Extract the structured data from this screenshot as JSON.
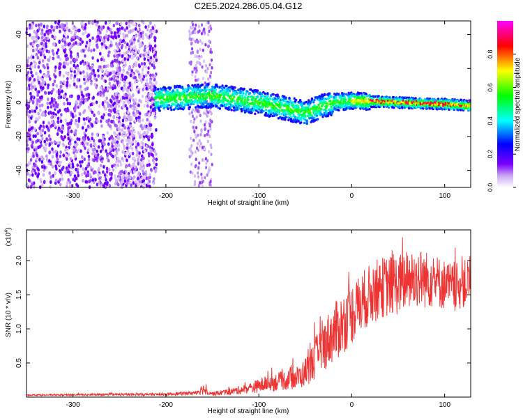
{
  "title": "C2E5.2024.286.05.04.G12",
  "chart_data": [
    {
      "type": "heatmap",
      "xlabel": "Height of straight line (km)",
      "ylabel": "Frequency (Hz)",
      "xlim": [
        -350,
        128
      ],
      "ylim": [
        -50,
        48
      ],
      "xticks": [
        -300,
        -200,
        -100,
        0,
        100
      ],
      "yticks": [
        -40,
        -20,
        0,
        20,
        40
      ],
      "colorbar": {
        "label": "Normalized spectral amplitude",
        "range": [
          0,
          1
        ],
        "ticks": [
          0.0,
          0.2,
          0.4,
          0.6,
          0.8
        ],
        "tick_labels": [
          "0.0",
          "0.2",
          "0.4",
          "0.6",
          "0.8"
        ],
        "colormap": [
          "#ffffff",
          "#8a2be2",
          "#0000ff",
          "#00ffff",
          "#00ff00",
          "#ffff00",
          "#ff0000",
          "#ff00ff"
        ]
      },
      "description_ridge": {
        "center_freq_hz": [
          [
            -210,
            2
          ],
          [
            -150,
            4
          ],
          [
            -100,
            0
          ],
          [
            -50,
            -6
          ],
          [
            -20,
            0
          ],
          [
            0,
            1
          ],
          [
            50,
            0
          ],
          [
            100,
            -1
          ],
          [
            128,
            -2
          ]
        ],
        "noise_region_km": [
          -350,
          -210
        ],
        "noise_strip_km": [
          -175,
          -150
        ]
      }
    },
    {
      "type": "line",
      "xlabel": "Height of straight line (km)",
      "ylabel": "SNR (10 * v/v)",
      "multiplier_label": "(x10",
      "multiplier_exp": "4",
      "xlim": [
        -350,
        128
      ],
      "ylim": [
        0,
        2.45
      ],
      "xticks": [
        -300,
        -200,
        -100,
        0,
        100
      ],
      "yticks": [
        0.5,
        1.0,
        1.5,
        2.0
      ],
      "ytick_labels": [
        "0.5",
        "1.0",
        "1.5",
        "2.0"
      ],
      "color": "#ee3333",
      "envelope": {
        "x": [
          -350,
          -200,
          -170,
          -160,
          -150,
          -130,
          -110,
          -90,
          -70,
          -55,
          -45,
          -35,
          -25,
          -15,
          -5,
          5,
          15,
          30,
          50,
          70,
          90,
          110,
          128
        ],
        "mean": [
          0.03,
          0.04,
          0.06,
          0.12,
          0.05,
          0.08,
          0.13,
          0.2,
          0.25,
          0.3,
          0.45,
          0.65,
          0.85,
          1.0,
          1.15,
          1.3,
          1.45,
          1.6,
          1.65,
          1.75,
          1.7,
          1.6,
          1.7
        ],
        "spread": [
          0.01,
          0.02,
          0.03,
          0.08,
          0.03,
          0.05,
          0.08,
          0.12,
          0.15,
          0.18,
          0.25,
          0.35,
          0.4,
          0.45,
          0.45,
          0.45,
          0.45,
          0.45,
          0.45,
          0.45,
          0.4,
          0.35,
          0.35
        ]
      }
    }
  ]
}
